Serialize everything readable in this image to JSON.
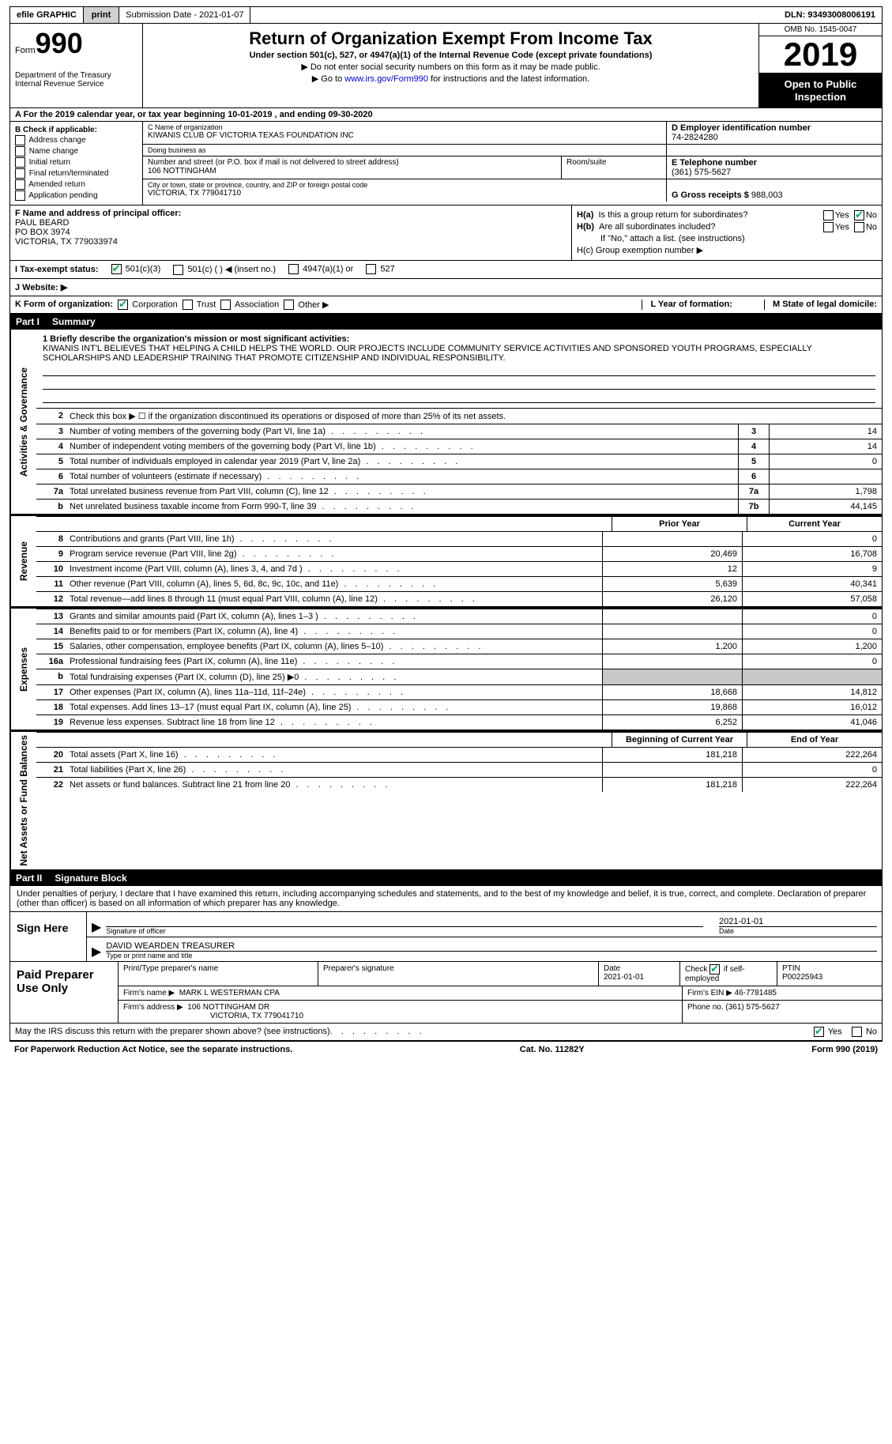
{
  "topbar": {
    "efile": "efile GRAPHIC",
    "print": "print",
    "submission": "Submission Date - 2021-01-07",
    "dln": "DLN: 93493008006191"
  },
  "header": {
    "form_prefix": "Form",
    "form_number": "990",
    "dept1": "Department of the Treasury",
    "dept2": "Internal Revenue Service",
    "title": "Return of Organization Exempt From Income Tax",
    "subtitle": "Under section 501(c), 527, or 4947(a)(1) of the Internal Revenue Code (except private foundations)",
    "note1": "▶ Do not enter social security numbers on this form as it may be made public.",
    "note2_pre": "▶ Go to ",
    "note2_link": "www.irs.gov/Form990",
    "note2_post": " for instructions and the latest information.",
    "omb": "OMB No. 1545-0047",
    "year": "2019",
    "inspect": "Open to Public Inspection"
  },
  "row_a": {
    "text": "A For the 2019 calendar year, or tax year beginning 10-01-2019    , and ending 09-30-2020"
  },
  "col_b": {
    "header": "B Check if applicable:",
    "items": [
      "Address change",
      "Name change",
      "Initial return",
      "Final return/terminated",
      "Amended return",
      "Application pending"
    ]
  },
  "block_c": {
    "label": "C Name of organization",
    "name": "KIWANIS CLUB OF VICTORIA TEXAS FOUNDATION INC",
    "dba_label": "Doing business as",
    "addr_label": "Number and street (or P.O. box if mail is not delivered to street address)",
    "addr": "106 NOTTINGHAM",
    "room_label": "Room/suite",
    "city_label": "City or town, state or province, country, and ZIP or foreign postal code",
    "city": "VICTORIA, TX  779041710"
  },
  "block_d": {
    "label": "D Employer identification number",
    "ein": "74-2824280"
  },
  "block_e": {
    "label": "E Telephone number",
    "phone": "(361) 575-5627"
  },
  "block_g": {
    "label": "G Gross receipts $",
    "amount": "988,003"
  },
  "block_f": {
    "label": "F Name and address of principal officer:",
    "name": "PAUL BEARD",
    "addr1": "PO BOX 3974",
    "addr2": "VICTORIA, TX  779033974"
  },
  "block_h": {
    "ha_label": "H(a)  Is this a group return for subordinates?",
    "ha_yes": "Yes",
    "ha_no": "No",
    "hb_label": "H(b)  Are all subordinates included?",
    "hb_note": "If \"No,\" attach a list. (see instructions)",
    "hc_label": "H(c)  Group exemption number ▶"
  },
  "block_i": {
    "label": "I    Tax-exempt status:",
    "o1": "501(c)(3)",
    "o2": "501(c) (  ) ◀ (insert no.)",
    "o3": "4947(a)(1) or",
    "o4": "527"
  },
  "block_j": {
    "label": "J   Website: ▶"
  },
  "block_k": {
    "label": "K Form of organization:",
    "o1": "Corporation",
    "o2": "Trust",
    "o3": "Association",
    "o4": "Other ▶",
    "l_label": "L Year of formation:",
    "m_label": "M State of legal domicile:"
  },
  "part1": {
    "num": "Part I",
    "title": "Summary"
  },
  "mission": {
    "label": "1   Briefly describe the organization's mission or most significant activities:",
    "text": "KIWANIS INT'L BELIEVES THAT HELPING A CHILD HELPS THE WORLD. OUR PROJECTS INCLUDE COMMUNITY SERVICE ACTIVITIES AND SPONSORED YOUTH PROGRAMS, ESPECIALLY SCHOLARSHIPS AND LEADERSHIP TRAINING THAT PROMOTE CITIZENSHIP AND INDIVIDUAL RESPONSIBILITY."
  },
  "vtabs": {
    "gov": "Activities & Governance",
    "rev": "Revenue",
    "exp": "Expenses",
    "net": "Net Assets or Fund Balances"
  },
  "lines_gov": [
    {
      "n": "2",
      "d": "Check this box ▶ ☐  if the organization discontinued its operations or disposed of more than 25% of its net assets."
    },
    {
      "n": "3",
      "d": "Number of voting members of the governing body (Part VI, line 1a)",
      "box": "3",
      "v": "14"
    },
    {
      "n": "4",
      "d": "Number of independent voting members of the governing body (Part VI, line 1b)",
      "box": "4",
      "v": "14"
    },
    {
      "n": "5",
      "d": "Total number of individuals employed in calendar year 2019 (Part V, line 2a)",
      "box": "5",
      "v": "0"
    },
    {
      "n": "6",
      "d": "Total number of volunteers (estimate if necessary)",
      "box": "6",
      "v": ""
    },
    {
      "n": "7a",
      "d": "Total unrelated business revenue from Part VIII, column (C), line 12",
      "box": "7a",
      "v": "1,798"
    },
    {
      "n": "b",
      "d": "Net unrelated business taxable income from Form 990-T, line 39",
      "box": "7b",
      "v": "44,145"
    }
  ],
  "col_headers": {
    "prior": "Prior Year",
    "current": "Current Year"
  },
  "lines_rev": [
    {
      "n": "8",
      "d": "Contributions and grants (Part VIII, line 1h)",
      "p": "",
      "c": "0"
    },
    {
      "n": "9",
      "d": "Program service revenue (Part VIII, line 2g)",
      "p": "20,469",
      "c": "16,708"
    },
    {
      "n": "10",
      "d": "Investment income (Part VIII, column (A), lines 3, 4, and 7d )",
      "p": "12",
      "c": "9"
    },
    {
      "n": "11",
      "d": "Other revenue (Part VIII, column (A), lines 5, 6d, 8c, 9c, 10c, and 11e)",
      "p": "5,639",
      "c": "40,341"
    },
    {
      "n": "12",
      "d": "Total revenue—add lines 8 through 11 (must equal Part VIII, column (A), line 12)",
      "p": "26,120",
      "c": "57,058"
    }
  ],
  "lines_exp": [
    {
      "n": "13",
      "d": "Grants and similar amounts paid (Part IX, column (A), lines 1–3 )",
      "p": "",
      "c": "0"
    },
    {
      "n": "14",
      "d": "Benefits paid to or for members (Part IX, column (A), line 4)",
      "p": "",
      "c": "0"
    },
    {
      "n": "15",
      "d": "Salaries, other compensation, employee benefits (Part IX, column (A), lines 5–10)",
      "p": "1,200",
      "c": "1,200"
    },
    {
      "n": "16a",
      "d": "Professional fundraising fees (Part IX, column (A), line 11e)",
      "p": "",
      "c": "0"
    },
    {
      "n": "b",
      "d": "Total fundraising expenses (Part IX, column (D), line 25) ▶0",
      "p": "shade",
      "c": "shade"
    },
    {
      "n": "17",
      "d": "Other expenses (Part IX, column (A), lines 11a–11d, 11f–24e)",
      "p": "18,668",
      "c": "14,812"
    },
    {
      "n": "18",
      "d": "Total expenses. Add lines 13–17 (must equal Part IX, column (A), line 25)",
      "p": "19,868",
      "c": "16,012"
    },
    {
      "n": "19",
      "d": "Revenue less expenses. Subtract line 18 from line 12",
      "p": "6,252",
      "c": "41,046"
    }
  ],
  "col_headers2": {
    "begin": "Beginning of Current Year",
    "end": "End of Year"
  },
  "lines_net": [
    {
      "n": "20",
      "d": "Total assets (Part X, line 16)",
      "p": "181,218",
      "c": "222,264"
    },
    {
      "n": "21",
      "d": "Total liabilities (Part X, line 26)",
      "p": "",
      "c": "0"
    },
    {
      "n": "22",
      "d": "Net assets or fund balances. Subtract line 21 from line 20",
      "p": "181,218",
      "c": "222,264"
    }
  ],
  "part2": {
    "num": "Part II",
    "title": "Signature Block"
  },
  "sig": {
    "intro": "Under penalties of perjury, I declare that I have examined this return, including accompanying schedules and statements, and to the best of my knowledge and belief, it is true, correct, and complete. Declaration of preparer (other than officer) is based on all information of which preparer has any knowledge.",
    "sign_here": "Sign Here",
    "sig_officer": "Signature of officer",
    "date": "2021-01-01",
    "date_label": "Date",
    "name": "DAVID WEARDEN  TREASURER",
    "name_label": "Type or print name and title"
  },
  "prep": {
    "label": "Paid Preparer Use Only",
    "h1": "Print/Type preparer's name",
    "h2": "Preparer's signature",
    "h3_label": "Date",
    "h3": "2021-01-01",
    "h4_label": "Check",
    "h4_suffix": "if self-employed",
    "h5_label": "PTIN",
    "h5": "P00225943",
    "firm_label": "Firm's name    ▶",
    "firm": "MARK L WESTERMAN CPA",
    "ein_label": "Firm's EIN ▶",
    "ein": "46-7781485",
    "addr_label": "Firm's address ▶",
    "addr1": "106 NOTTINGHAM DR",
    "addr2": "VICTORIA, TX  779041710",
    "phone_label": "Phone no.",
    "phone": "(361) 575-5627"
  },
  "bottom": {
    "q": "May the IRS discuss this return with the preparer shown above? (see instructions)",
    "yes": "Yes",
    "no": "No"
  },
  "footer": {
    "left": "For Paperwork Reduction Act Notice, see the separate instructions.",
    "center": "Cat. No. 11282Y",
    "right": "Form 990 (2019)"
  }
}
